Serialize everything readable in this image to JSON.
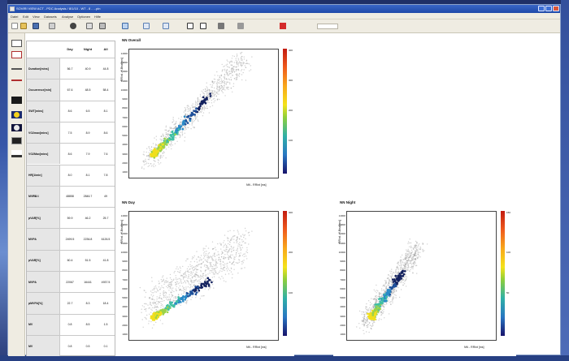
{
  "window": {
    "title": "SOVIRI VIEW ACT - PDC Analysis / 8/1/10 - W7 - 8 - ...pin"
  },
  "menu": [
    "Datei",
    "Edit",
    "View",
    "Datasets",
    "Analyse",
    "Optionen",
    "Hilfe"
  ],
  "toolbar": {
    "icons": [
      "new-icon",
      "open-icon",
      "save-icon",
      "export-icon",
      "print-icon",
      "preview-icon",
      "filter-icon",
      "chart-icon",
      "zoom-in-icon",
      "zoom-out-icon",
      "grid-icon",
      "table-icon",
      "settings-icon",
      "help-icon",
      "flag-icon"
    ]
  },
  "sidebar": {
    "icons": [
      "rect-tool-icon",
      "poly-tool-icon",
      "select-tool-icon",
      "pan-tool-icon",
      "day-icon",
      "sun-icon",
      "moon-icon",
      "compare-icon",
      "stats-icon"
    ]
  },
  "table": {
    "headers": [
      "Day",
      "Night",
      "All"
    ],
    "rows": [
      {
        "label": "Duration[mins]",
        "values": [
          "56.7",
          "40.9",
          "44.8"
        ]
      },
      {
        "label": "Occurrence[min]",
        "values": [
          "67.6",
          "48.5",
          "58.4"
        ]
      },
      {
        "label": "SWT[mins]",
        "values": [
          "8.6",
          "6.5",
          "8.1"
        ]
      },
      {
        "label": "VO2max[mins]",
        "values": [
          "7.5",
          "8.9",
          "8.6"
        ]
      },
      {
        "label": "VO2Max[mins]",
        "values": [
          "8.6",
          "7.9",
          "7.6"
        ]
      },
      {
        "label": "HR[1/min]",
        "values": [
          "8.0",
          "8.1",
          "7.8"
        ]
      },
      {
        "label": "MVPA",
        "values": "48858,2846.7,49,2104"
      },
      {
        "label": "pVAR[%]",
        "values": [
          "59.9",
          "46.2",
          "25.7"
        ]
      },
      {
        "label": "MVPA",
        "values": [
          "2499.5",
          "2236.8",
          "6126.5"
        ]
      },
      {
        "label": "pVAR[%]",
        "values": [
          "60.4",
          "51.5",
          "41.8"
        ]
      },
      {
        "label": "MVPA",
        "values": [
          "22067",
          "16441",
          "4937.5"
        ]
      },
      {
        "label": "pMVPA[%]",
        "values": [
          "22.7",
          "8.3",
          "18.4"
        ]
      },
      {
        "label": "MV",
        "values": [
          "0.8",
          "8.5",
          "1.5"
        ]
      },
      {
        "label": "MV",
        "values": [
          "0.8",
          "0.5",
          "0.1"
        ]
      }
    ]
  },
  "plots": [
    {
      "title": "NN Overall",
      "ylabel": "RRint - Y-Beat[ms]",
      "xlabel": "NN - RRint [ms]",
      "yticks": [
        "14000",
        "13000",
        "12000",
        "11000",
        "10000",
        "9000",
        "8000",
        "7000",
        "6000",
        "5000",
        "4000",
        "3000",
        "2000",
        "1000"
      ],
      "cbar_ticks": [
        "400",
        "300",
        "200",
        "100"
      ]
    },
    {
      "title": "NN Day",
      "ylabel": "RRint - Y-Beat[ms]",
      "xlabel": "NN - RRint [ms]",
      "yticks": [
        "14000",
        "13000",
        "12000",
        "11000",
        "10000",
        "9000",
        "8000",
        "7000",
        "6000",
        "5000",
        "4000",
        "3000",
        "2000",
        "1000"
      ],
      "cbar_ticks": [
        "300",
        "200",
        "100"
      ]
    },
    {
      "title": "NN Night",
      "ylabel": "RRint - Y-Beat[ms]",
      "xlabel": "NN - RRint [ms]",
      "yticks": [
        "14000",
        "13000",
        "12000",
        "11000",
        "10000",
        "9000",
        "8000",
        "7000",
        "6000",
        "5000",
        "4000",
        "3000",
        "2000",
        "1000"
      ],
      "cbar_ticks": [
        "150",
        "100",
        "50"
      ]
    }
  ]
}
